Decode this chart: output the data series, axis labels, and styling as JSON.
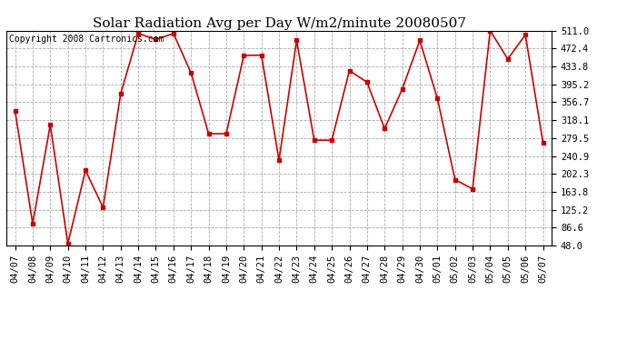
{
  "title": "Solar Radiation Avg per Day W/m2/minute 20080507",
  "copyright": "Copyright 2008 Cartronics.com",
  "dates": [
    "04/07",
    "04/08",
    "04/09",
    "04/10",
    "04/11",
    "04/12",
    "04/13",
    "04/14",
    "04/15",
    "04/16",
    "04/17",
    "04/18",
    "04/19",
    "04/20",
    "04/21",
    "04/22",
    "04/23",
    "04/24",
    "04/25",
    "04/26",
    "04/27",
    "04/28",
    "04/29",
    "04/30",
    "05/01",
    "05/02",
    "05/03",
    "05/04",
    "05/05",
    "05/06",
    "05/07"
  ],
  "values": [
    338,
    95,
    308,
    52,
    210,
    130,
    375,
    505,
    492,
    505,
    420,
    289,
    289,
    458,
    458,
    232,
    490,
    275,
    275,
    425,
    400,
    300,
    385,
    490,
    365,
    190,
    170,
    511,
    450,
    502,
    270
  ],
  "line_color": "#cc0000",
  "marker": "s",
  "marker_size": 3,
  "bg_color": "#ffffff",
  "grid_color": "#aaaaaa",
  "grid_style": "--",
  "ymin": 48.0,
  "ymax": 511.0,
  "yticks": [
    48.0,
    86.6,
    125.2,
    163.8,
    202.3,
    240.9,
    279.5,
    318.1,
    356.7,
    395.2,
    433.8,
    472.4,
    511.0
  ],
  "title_fontsize": 11,
  "copyright_fontsize": 7,
  "tick_fontsize": 7.5
}
